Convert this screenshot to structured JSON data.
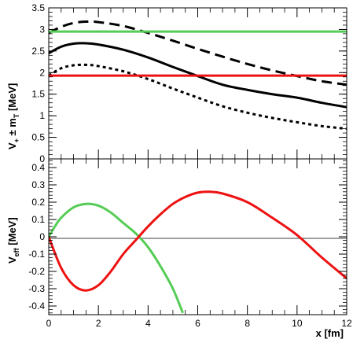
{
  "chart_data": [
    {
      "type": "line",
      "ylabel": {
        "main": "V",
        "sub": "+",
        "rest": " ± m",
        "sub2": "T",
        "unit": " [MeV]"
      },
      "xlim": [
        0,
        12
      ],
      "ylim": [
        0,
        3.5
      ],
      "yticks": [
        "0",
        "0.5",
        "1",
        "1.5",
        "2",
        "2.5",
        "3",
        "3.5"
      ],
      "series": [
        {
          "style": "dashed",
          "color": "#000000",
          "x": [
            0,
            0.5,
            1,
            1.5,
            2,
            3,
            4,
            5,
            6,
            7,
            8,
            9,
            10,
            11,
            12
          ],
          "y": [
            2.92,
            3.06,
            3.15,
            3.18,
            3.17,
            3.08,
            2.92,
            2.74,
            2.55,
            2.37,
            2.2,
            2.05,
            1.92,
            1.8,
            1.72
          ]
        },
        {
          "style": "solid",
          "color": "#000000",
          "x": [
            0,
            0.5,
            1,
            1.5,
            2,
            3,
            4,
            5,
            6,
            7,
            8,
            9,
            10,
            11,
            12
          ],
          "y": [
            2.45,
            2.6,
            2.67,
            2.68,
            2.65,
            2.53,
            2.35,
            2.13,
            1.92,
            1.72,
            1.6,
            1.5,
            1.42,
            1.3,
            1.2
          ]
        },
        {
          "style": "dotted",
          "color": "#000000",
          "x": [
            0,
            0.5,
            1,
            1.5,
            2,
            3,
            4,
            5,
            6,
            7,
            8,
            9,
            10,
            11,
            12
          ],
          "y": [
            1.93,
            2.1,
            2.17,
            2.18,
            2.15,
            2.03,
            1.85,
            1.63,
            1.42,
            1.22,
            1.07,
            0.95,
            0.85,
            0.76,
            0.7
          ]
        },
        {
          "style": "solid",
          "color": "#55cc55",
          "x": [
            0,
            12
          ],
          "y": [
            2.95,
            2.95
          ]
        },
        {
          "style": "solid",
          "color": "#ee1111",
          "x": [
            0,
            12
          ],
          "y": [
            1.93,
            1.93
          ]
        }
      ]
    },
    {
      "type": "line",
      "ylabel": {
        "main": "V",
        "sub": "eff",
        "unit": " [MeV]"
      },
      "xlabel": "x [fm]",
      "xlim": [
        0,
        12
      ],
      "ylim": [
        -0.45,
        0.45
      ],
      "yticks": [
        "-0.4",
        "-0.3",
        "-0.2",
        "-0.1",
        "0",
        "0.1",
        "0.2",
        "0.3",
        "0.4"
      ],
      "xticks": [
        "0",
        "2",
        "4",
        "6",
        "8",
        "10",
        "12"
      ],
      "series": [
        {
          "style": "solid",
          "color": "#55cc55",
          "x": [
            0,
            0.25,
            0.5,
            1,
            1.5,
            2,
            2.5,
            3,
            3.5,
            4,
            4.5,
            5,
            5.4
          ],
          "y": [
            0,
            0.06,
            0.11,
            0.17,
            0.19,
            0.18,
            0.14,
            0.08,
            0.02,
            -0.06,
            -0.17,
            -0.3,
            -0.44
          ]
        },
        {
          "style": "solid",
          "color": "#ee1111",
          "x": [
            0,
            0.5,
            1,
            1.5,
            2,
            2.5,
            3,
            3.5,
            4,
            4.5,
            5,
            5.5,
            6,
            6.5,
            7,
            8,
            9,
            10,
            11,
            12
          ],
          "y": [
            0,
            -0.18,
            -0.28,
            -0.31,
            -0.28,
            -0.2,
            -0.1,
            -0.02,
            0.06,
            0.13,
            0.19,
            0.23,
            0.255,
            0.26,
            0.25,
            0.2,
            0.11,
            0.01,
            -0.12,
            -0.24
          ]
        }
      ]
    }
  ]
}
